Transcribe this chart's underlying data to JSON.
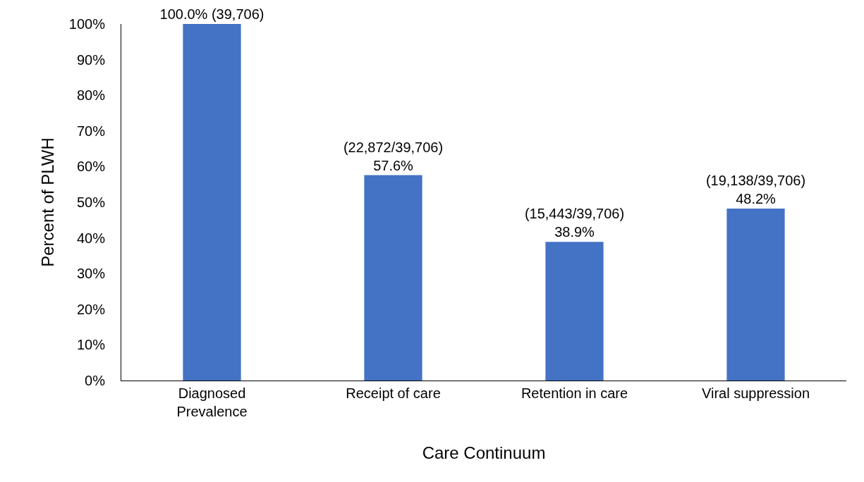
{
  "chart_data": {
    "type": "bar",
    "xlabel": "Care Continuum",
    "ylabel": "Percent of PLWH",
    "categories": [
      "Diagnosed\nPrevalence",
      "Receipt of care",
      "Retention in care",
      "Viral suppression"
    ],
    "values": [
      100,
      57.6,
      38.9,
      48.2
    ],
    "color": "#4472c4",
    "value_labels": [
      "100.0% (39,706)",
      "(22,872/39,706)\n57.6%",
      "(15,443/39,706)\n38.9%",
      "(19,138/39,706)\n48.2%"
    ],
    "ylim": [
      0,
      100
    ],
    "yticks": [
      {
        "value": 0,
        "label": "0%"
      },
      {
        "value": 10,
        "label": "10%"
      },
      {
        "value": 20,
        "label": "20%"
      },
      {
        "value": 30,
        "label": "30%"
      },
      {
        "value": 40,
        "label": "40%"
      },
      {
        "value": 50,
        "label": "50%"
      },
      {
        "value": 60,
        "label": "60%"
      },
      {
        "value": 70,
        "label": "70%"
      },
      {
        "value": 80,
        "label": "80%"
      },
      {
        "value": 90,
        "label": "90%"
      },
      {
        "value": 100,
        "label": "100%"
      }
    ],
    "grid": false
  }
}
